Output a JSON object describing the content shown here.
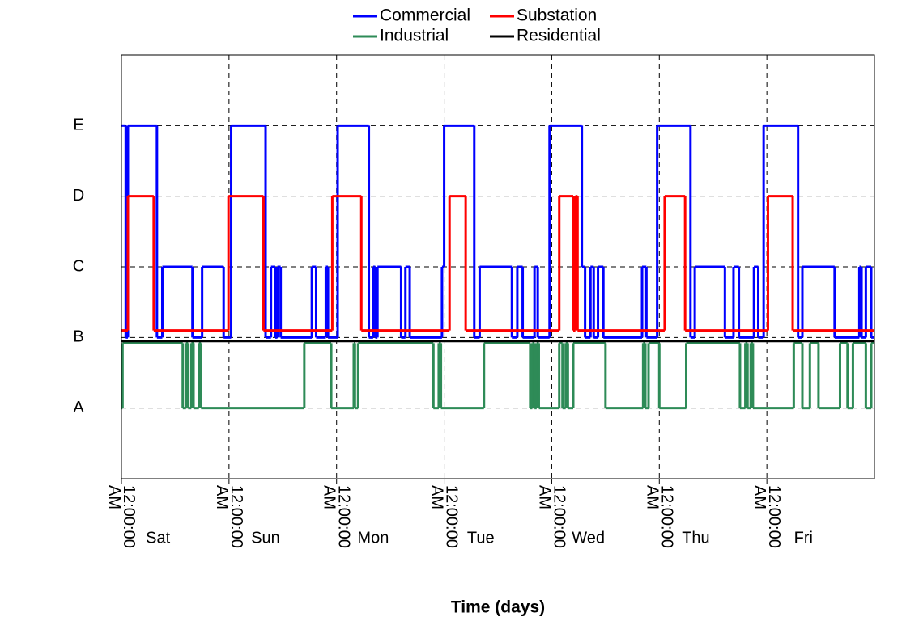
{
  "chart_data": {
    "type": "step",
    "x_title": "Time (days)",
    "xlim": [
      0,
      7
    ],
    "xticks": [
      {
        "value": 0,
        "label": "12:00:00 AM"
      },
      {
        "value": 1,
        "label": "12:00:00 AM"
      },
      {
        "value": 2,
        "label": "12:00:00 AM"
      },
      {
        "value": 3,
        "label": "12:00:00 AM"
      },
      {
        "value": 4,
        "label": "12:00:00 AM"
      },
      {
        "value": 5,
        "label": "12:00:00 AM"
      },
      {
        "value": 6,
        "label": "12:00:00 AM"
      }
    ],
    "day_labels": [
      "Sat",
      "Sun",
      "Mon",
      "Tue",
      "Wed",
      "Thu",
      "Fri"
    ],
    "ylim": [
      0,
      6
    ],
    "yticks": [
      {
        "value": 1,
        "label": "A"
      },
      {
        "value": 2,
        "label": "B"
      },
      {
        "value": 3,
        "label": "C"
      },
      {
        "value": 4,
        "label": "D"
      },
      {
        "value": 5,
        "label": "E"
      }
    ],
    "grid": true,
    "legend": "top",
    "series": [
      {
        "name": "Commercial",
        "color": "#0000ff",
        "x": [
          0,
          0.04,
          0.06,
          0.33,
          0.38,
          0.66,
          0.75,
          0.95,
          1.02,
          1.34,
          1.39,
          1.43,
          1.45,
          1.48,
          1.77,
          1.81,
          1.9,
          1.92,
          2.01,
          2.3,
          2.34,
          2.36,
          2.38,
          2.6,
          2.64,
          2.68,
          2.98,
          3.0,
          3.28,
          3.33,
          3.63,
          3.68,
          3.73,
          3.84,
          3.87,
          3.98,
          4.28,
          4.31,
          4.36,
          4.39,
          4.43,
          4.48,
          4.84,
          4.88,
          4.98,
          5.29,
          5.33,
          5.61,
          5.69,
          5.74,
          5.88,
          5.92,
          5.97,
          6.29,
          6.33,
          6.63,
          6.86,
          6.88,
          6.92,
          6.97
        ],
        "values": [
          5,
          2,
          5,
          2,
          3,
          2,
          3,
          2,
          5,
          2,
          3,
          2,
          3,
          2,
          3,
          2,
          3,
          2,
          5,
          2,
          3,
          2,
          3,
          2,
          3,
          2,
          3,
          5,
          2,
          3,
          2,
          3,
          2,
          3,
          2,
          5,
          3,
          2,
          3,
          2,
          3,
          2,
          3,
          2,
          5,
          2,
          3,
          2,
          3,
          2,
          3,
          2,
          5,
          2,
          3,
          2,
          3,
          2,
          3,
          2
        ]
      },
      {
        "name": "Substation",
        "color": "#ff0000",
        "x": [
          0,
          0.06,
          0.3,
          0.995,
          1.32,
          1.96,
          2.23,
          3.05,
          3.2,
          4.07,
          4.2,
          4.22,
          4.24,
          5.05,
          5.24,
          6.01,
          6.24
        ],
        "values": [
          2.1,
          4,
          2.1,
          4,
          2.1,
          4,
          2.1,
          4,
          2.1,
          4,
          2.1,
          4,
          2.1,
          4,
          2.1,
          4,
          2.1
        ]
      },
      {
        "name": "Industrial",
        "color": "#2e8b57",
        "x": [
          0,
          0.01,
          0.57,
          0.6,
          0.62,
          0.65,
          0.67,
          0.72,
          0.74,
          1.7,
          1.95,
          2.16,
          2.17,
          2.2,
          2.9,
          2.95,
          2.97,
          3.37,
          3.8,
          3.82,
          3.84,
          3.86,
          3.88,
          4.07,
          4.1,
          4.13,
          4.15,
          4.2,
          4.5,
          4.85,
          4.87,
          4.9,
          5.0,
          5.25,
          5.75,
          5.8,
          5.82,
          5.85,
          5.87,
          6.25,
          6.33,
          6.4,
          6.48,
          6.68,
          6.75,
          6.8,
          6.92,
          6.97
        ],
        "values": [
          1,
          1.92,
          1,
          1.92,
          1,
          1.92,
          1,
          1.92,
          1,
          1.92,
          1,
          1.92,
          1,
          1.92,
          1,
          1.92,
          1,
          1.92,
          1,
          1.92,
          1,
          1.92,
          1,
          1.92,
          1,
          1.92,
          1,
          1.92,
          1,
          1.92,
          1,
          1.92,
          1,
          1.92,
          1,
          1.92,
          1,
          1.92,
          1,
          1.92,
          1,
          1.92,
          1,
          1.92,
          1,
          1.92,
          1,
          1.92
        ]
      },
      {
        "name": "Residential",
        "color": "#000000",
        "x": [
          0
        ],
        "values": [
          1.95
        ]
      }
    ]
  }
}
